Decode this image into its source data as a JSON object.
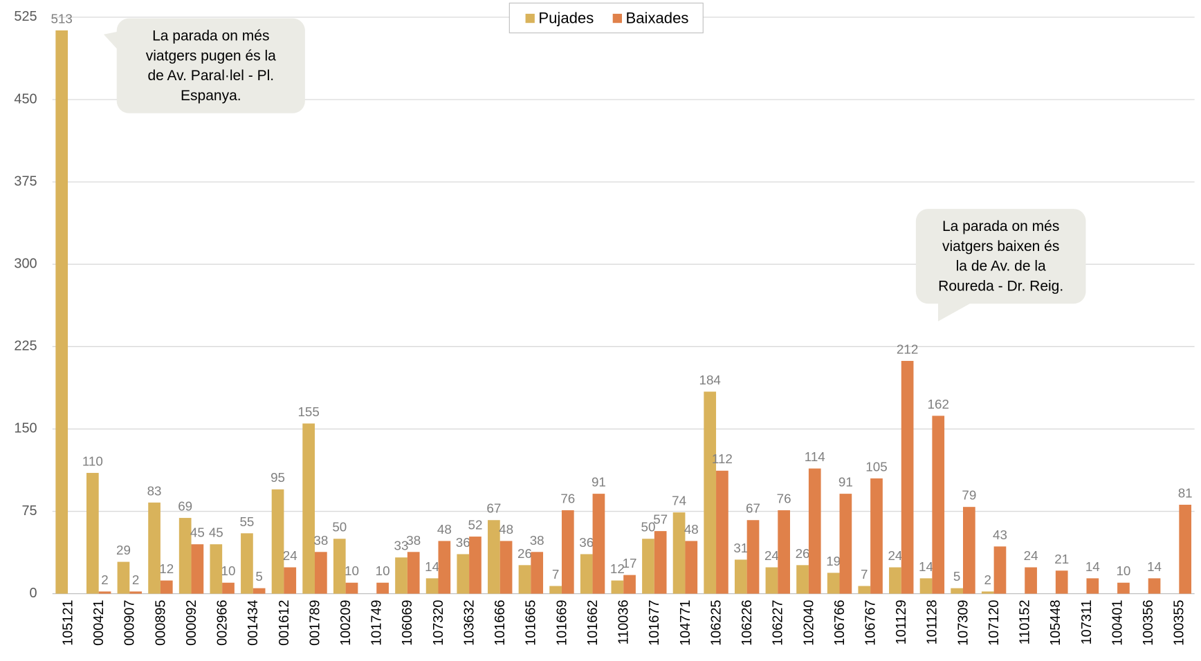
{
  "chart_data": {
    "type": "bar",
    "categories": [
      "105121",
      "000421",
      "000907",
      "000895",
      "000092",
      "002966",
      "001434",
      "001612",
      "001789",
      "100209",
      "101749",
      "106069",
      "107320",
      "103632",
      "101666",
      "101665",
      "101669",
      "101662",
      "110036",
      "101677",
      "104771",
      "106225",
      "106226",
      "106227",
      "102040",
      "106766",
      "106767",
      "101129",
      "101128",
      "107309",
      "107120",
      "110152",
      "105448",
      "107311",
      "100401",
      "100356",
      "100355"
    ],
    "series": [
      {
        "name": "Pujades",
        "color": "#d9b35b",
        "values": [
          513,
          110,
          29,
          83,
          69,
          45,
          55,
          95,
          155,
          50,
          null,
          33,
          14,
          36,
          67,
          26,
          7,
          36,
          12,
          50,
          74,
          184,
          31,
          24,
          26,
          19,
          7,
          24,
          14,
          5,
          2,
          null,
          null,
          null,
          null,
          null,
          null
        ]
      },
      {
        "name": "Baixades",
        "color": "#e0814a",
        "values": [
          null,
          2,
          2,
          12,
          45,
          10,
          5,
          24,
          38,
          10,
          10,
          38,
          48,
          52,
          48,
          38,
          76,
          91,
          17,
          57,
          48,
          112,
          67,
          76,
          114,
          91,
          105,
          212,
          162,
          79,
          43,
          24,
          21,
          14,
          10,
          14,
          81
        ]
      }
    ],
    "ylim": [
      0,
      525
    ],
    "yticks": [
      0,
      75,
      150,
      225,
      300,
      375,
      450,
      525
    ],
    "grid": true,
    "legend": "top",
    "annotations": [
      {
        "lines": [
          "La parada on més",
          "viatgers pugen és la",
          "de Av. Paral·lel - Pl.",
          "Espanya."
        ]
      },
      {
        "lines": [
          "La parada on més",
          "viatgers baixen és",
          "la de Av. de la",
          "Roureda - Dr. Reig."
        ]
      }
    ]
  }
}
